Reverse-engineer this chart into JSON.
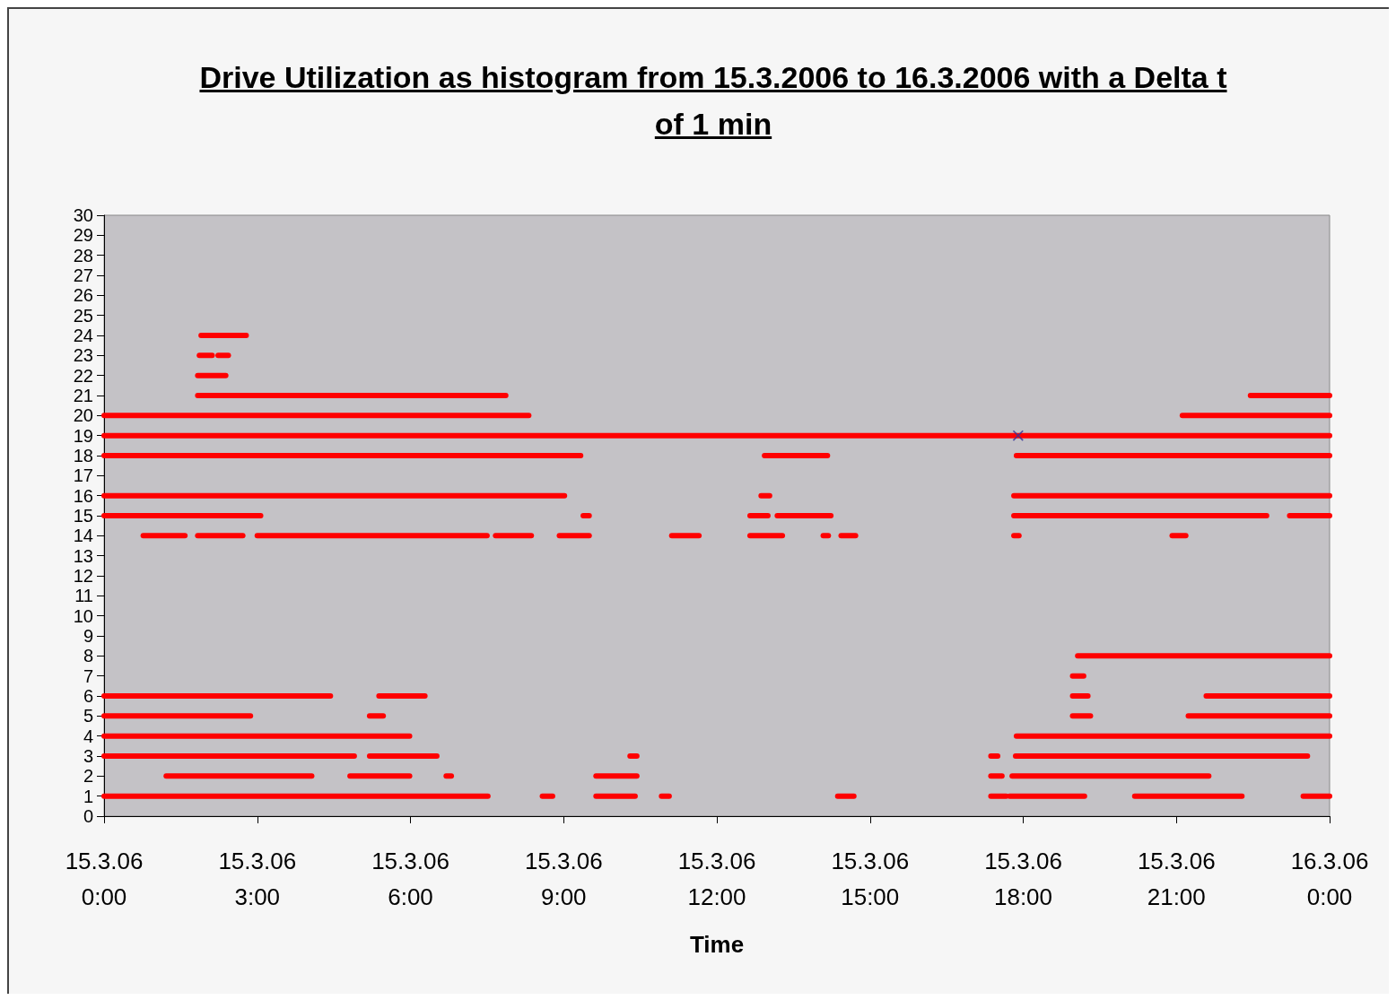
{
  "chart_data": {
    "type": "line",
    "title": "Drive Utilization as histogram from 15.3.2006 to 16.3.2006 with a Delta t of 1 min",
    "xlabel": "Time",
    "marker": "none",
    "line_style": "solid",
    "xlim": [
      "2006-03-15T00:00",
      "2006-03-16T00:00"
    ],
    "xticks": [
      {
        "value": "2006-03-15T00:00",
        "label": "15.3.06\n0:00"
      },
      {
        "value": "2006-03-15T03:00",
        "label": "15.3.06\n3:00"
      },
      {
        "value": "2006-03-15T06:00",
        "label": "15.3.06\n6:00"
      },
      {
        "value": "2006-03-15T09:00",
        "label": "15.3.06\n9:00"
      },
      {
        "value": "2006-03-15T12:00",
        "label": "15.3.06\n12:00"
      },
      {
        "value": "2006-03-15T15:00",
        "label": "15.3.06\n15:00"
      },
      {
        "value": "2006-03-15T18:00",
        "label": "15.3.06\n18:00"
      },
      {
        "value": "2006-03-15T21:00",
        "label": "15.3.06\n21:00"
      },
      {
        "value": "2006-03-16T00:00",
        "label": "16.3.06\n0:00"
      }
    ],
    "ylim": [
      0,
      30
    ],
    "yticks": [
      0,
      1,
      2,
      3,
      4,
      5,
      6,
      7,
      8,
      9,
      10,
      11,
      12,
      13,
      14,
      15,
      16,
      17,
      18,
      19,
      20,
      21,
      22,
      23,
      24,
      25,
      26,
      27,
      28,
      29,
      30
    ],
    "series": [
      {
        "color": "#ff0000",
        "x": [
          "2006-03-15T01:54",
          "2006-03-15T02:47"
        ],
        "values": [
          24,
          24
        ]
      },
      {
        "color": "#ff0000",
        "x": [
          "2006-03-15T01:52",
          "2006-03-15T02:07"
        ],
        "values": [
          23,
          23
        ]
      },
      {
        "color": "#ff0000",
        "x": [
          "2006-03-15T02:14",
          "2006-03-15T02:26"
        ],
        "values": [
          23,
          23
        ]
      },
      {
        "color": "#ff0000",
        "x": [
          "2006-03-15T01:50",
          "2006-03-15T02:23"
        ],
        "values": [
          22,
          22
        ]
      },
      {
        "color": "#ff0000",
        "x": [
          "2006-03-15T01:50",
          "2006-03-15T07:52"
        ],
        "values": [
          21,
          21
        ]
      },
      {
        "color": "#ff0000",
        "x": [
          "2006-03-15T22:27",
          "2006-03-16T00:00"
        ],
        "values": [
          21,
          21
        ]
      },
      {
        "color": "#ff0000",
        "x": [
          "2006-03-15T00:00",
          "2006-03-15T08:19"
        ],
        "values": [
          20,
          20
        ]
      },
      {
        "color": "#ff0000",
        "x": [
          "2006-03-15T21:07",
          "2006-03-16T00:00"
        ],
        "values": [
          20,
          20
        ]
      },
      {
        "color": "#ff0000",
        "x": [
          "2006-03-15T00:00",
          "2006-03-16T00:00"
        ],
        "values": [
          19,
          19
        ]
      },
      {
        "color": "#ff0000",
        "x": [
          "2006-03-15T00:00",
          "2006-03-15T09:20"
        ],
        "values": [
          18,
          18
        ]
      },
      {
        "color": "#ff0000",
        "x": [
          "2006-03-15T12:56",
          "2006-03-15T14:10"
        ],
        "values": [
          18,
          18
        ]
      },
      {
        "color": "#ff0000",
        "x": [
          "2006-03-15T17:52",
          "2006-03-16T00:00"
        ],
        "values": [
          18,
          18
        ]
      },
      {
        "color": "#ff0000",
        "x": [
          "2006-03-15T00:00",
          "2006-03-15T09:01"
        ],
        "values": [
          16,
          16
        ]
      },
      {
        "color": "#ff0000",
        "x": [
          "2006-03-15T12:52",
          "2006-03-15T13:02"
        ],
        "values": [
          16,
          16
        ]
      },
      {
        "color": "#ff0000",
        "x": [
          "2006-03-15T17:49",
          "2006-03-16T00:00"
        ],
        "values": [
          16,
          16
        ]
      },
      {
        "color": "#ff0000",
        "x": [
          "2006-03-15T00:00",
          "2006-03-15T03:04"
        ],
        "values": [
          15,
          15
        ]
      },
      {
        "color": "#ff0000",
        "x": [
          "2006-03-15T09:23",
          "2006-03-15T09:30"
        ],
        "values": [
          15,
          15
        ]
      },
      {
        "color": "#ff0000",
        "x": [
          "2006-03-15T12:39",
          "2006-03-15T13:00"
        ],
        "values": [
          15,
          15
        ]
      },
      {
        "color": "#ff0000",
        "x": [
          "2006-03-15T13:11",
          "2006-03-15T14:14"
        ],
        "values": [
          15,
          15
        ]
      },
      {
        "color": "#ff0000",
        "x": [
          "2006-03-15T17:49",
          "2006-03-15T22:46"
        ],
        "values": [
          15,
          15
        ]
      },
      {
        "color": "#ff0000",
        "x": [
          "2006-03-15T23:13",
          "2006-03-16T00:00"
        ],
        "values": [
          15,
          15
        ]
      },
      {
        "color": "#ff0000",
        "x": [
          "2006-03-15T00:46",
          "2006-03-15T01:35"
        ],
        "values": [
          14,
          14
        ]
      },
      {
        "color": "#ff0000",
        "x": [
          "2006-03-15T01:50",
          "2006-03-15T02:43"
        ],
        "values": [
          14,
          14
        ]
      },
      {
        "color": "#ff0000",
        "x": [
          "2006-03-15T03:00",
          "2006-03-15T07:30"
        ],
        "values": [
          14,
          14
        ]
      },
      {
        "color": "#ff0000",
        "x": [
          "2006-03-15T07:40",
          "2006-03-15T08:22"
        ],
        "values": [
          14,
          14
        ]
      },
      {
        "color": "#ff0000",
        "x": [
          "2006-03-15T08:55",
          "2006-03-15T09:30"
        ],
        "values": [
          14,
          14
        ]
      },
      {
        "color": "#ff0000",
        "x": [
          "2006-03-15T11:07",
          "2006-03-15T11:39"
        ],
        "values": [
          14,
          14
        ]
      },
      {
        "color": "#ff0000",
        "x": [
          "2006-03-15T12:39",
          "2006-03-15T13:17"
        ],
        "values": [
          14,
          14
        ]
      },
      {
        "color": "#ff0000",
        "x": [
          "2006-03-15T14:05",
          "2006-03-15T14:11"
        ],
        "values": [
          14,
          14
        ]
      },
      {
        "color": "#ff0000",
        "x": [
          "2006-03-15T14:26",
          "2006-03-15T14:43"
        ],
        "values": [
          14,
          14
        ]
      },
      {
        "color": "#ff0000",
        "x": [
          "2006-03-15T17:49",
          "2006-03-15T17:55"
        ],
        "values": [
          14,
          14
        ]
      },
      {
        "color": "#ff0000",
        "x": [
          "2006-03-15T20:55",
          "2006-03-15T21:11"
        ],
        "values": [
          14,
          14
        ]
      },
      {
        "color": "#ff0000",
        "x": [
          "2006-03-15T19:04",
          "2006-03-16T00:00"
        ],
        "values": [
          8,
          8
        ]
      },
      {
        "color": "#ff0000",
        "x": [
          "2006-03-15T18:58",
          "2006-03-15T19:11"
        ],
        "values": [
          7,
          7
        ]
      },
      {
        "color": "#ff0000",
        "x": [
          "2006-03-15T00:00",
          "2006-03-15T04:26"
        ],
        "values": [
          6,
          6
        ]
      },
      {
        "color": "#ff0000",
        "x": [
          "2006-03-15T05:23",
          "2006-03-15T06:17"
        ],
        "values": [
          6,
          6
        ]
      },
      {
        "color": "#ff0000",
        "x": [
          "2006-03-15T18:58",
          "2006-03-15T19:16"
        ],
        "values": [
          6,
          6
        ]
      },
      {
        "color": "#ff0000",
        "x": [
          "2006-03-15T21:35",
          "2006-03-16T00:00"
        ],
        "values": [
          6,
          6
        ]
      },
      {
        "color": "#ff0000",
        "x": [
          "2006-03-15T00:00",
          "2006-03-15T02:52"
        ],
        "values": [
          5,
          5
        ]
      },
      {
        "color": "#ff0000",
        "x": [
          "2006-03-15T05:12",
          "2006-03-15T05:28"
        ],
        "values": [
          5,
          5
        ]
      },
      {
        "color": "#ff0000",
        "x": [
          "2006-03-15T18:58",
          "2006-03-15T19:19"
        ],
        "values": [
          5,
          5
        ]
      },
      {
        "color": "#ff0000",
        "x": [
          "2006-03-15T21:14",
          "2006-03-16T00:00"
        ],
        "values": [
          5,
          5
        ]
      },
      {
        "color": "#ff0000",
        "x": [
          "2006-03-15T00:00",
          "2006-03-15T05:59"
        ],
        "values": [
          4,
          4
        ]
      },
      {
        "color": "#ff0000",
        "x": [
          "2006-03-15T17:52",
          "2006-03-16T00:00"
        ],
        "values": [
          4,
          4
        ]
      },
      {
        "color": "#ff0000",
        "x": [
          "2006-03-15T00:00",
          "2006-03-15T04:54"
        ],
        "values": [
          3,
          3
        ]
      },
      {
        "color": "#ff0000",
        "x": [
          "2006-03-15T05:12",
          "2006-03-15T06:31"
        ],
        "values": [
          3,
          3
        ]
      },
      {
        "color": "#ff0000",
        "x": [
          "2006-03-15T10:18",
          "2006-03-15T10:26"
        ],
        "values": [
          3,
          3
        ]
      },
      {
        "color": "#ff0000",
        "x": [
          "2006-03-15T17:22",
          "2006-03-15T17:30"
        ],
        "values": [
          3,
          3
        ]
      },
      {
        "color": "#ff0000",
        "x": [
          "2006-03-15T17:51",
          "2006-03-15T23:34"
        ],
        "values": [
          3,
          3
        ]
      },
      {
        "color": "#ff0000",
        "x": [
          "2006-03-15T01:13",
          "2006-03-15T04:04"
        ],
        "values": [
          2,
          2
        ]
      },
      {
        "color": "#ff0000",
        "x": [
          "2006-03-15T04:49",
          "2006-03-15T05:59"
        ],
        "values": [
          2,
          2
        ]
      },
      {
        "color": "#ff0000",
        "x": [
          "2006-03-15T06:42",
          "2006-03-15T06:48"
        ],
        "values": [
          2,
          2
        ]
      },
      {
        "color": "#ff0000",
        "x": [
          "2006-03-15T09:38",
          "2006-03-15T10:26"
        ],
        "values": [
          2,
          2
        ]
      },
      {
        "color": "#ff0000",
        "x": [
          "2006-03-15T17:22",
          "2006-03-15T17:35"
        ],
        "values": [
          2,
          2
        ]
      },
      {
        "color": "#ff0000",
        "x": [
          "2006-03-15T17:47",
          "2006-03-15T21:38"
        ],
        "values": [
          2,
          2
        ]
      },
      {
        "color": "#ff0000",
        "x": [
          "2006-03-15T00:00",
          "2006-03-15T07:31"
        ],
        "values": [
          1,
          1
        ]
      },
      {
        "color": "#ff0000",
        "x": [
          "2006-03-15T08:35",
          "2006-03-15T08:47"
        ],
        "values": [
          1,
          1
        ]
      },
      {
        "color": "#ff0000",
        "x": [
          "2006-03-15T09:38",
          "2006-03-15T10:24"
        ],
        "values": [
          1,
          1
        ]
      },
      {
        "color": "#ff0000",
        "x": [
          "2006-03-15T10:55",
          "2006-03-15T11:04"
        ],
        "values": [
          1,
          1
        ]
      },
      {
        "color": "#ff0000",
        "x": [
          "2006-03-15T14:22",
          "2006-03-15T14:41"
        ],
        "values": [
          1,
          1
        ]
      },
      {
        "color": "#ff0000",
        "x": [
          "2006-03-15T17:22",
          "2006-03-15T17:40"
        ],
        "values": [
          1,
          1
        ]
      },
      {
        "color": "#ff0000",
        "x": [
          "2006-03-15T17:44",
          "2006-03-15T19:12"
        ],
        "values": [
          1,
          1
        ]
      },
      {
        "color": "#ff0000",
        "x": [
          "2006-03-15T20:11",
          "2006-03-15T22:17"
        ],
        "values": [
          1,
          1
        ]
      },
      {
        "color": "#ff0000",
        "x": [
          "2006-03-15T23:29",
          "2006-03-16T00:00"
        ],
        "values": [
          1,
          1
        ]
      },
      {
        "type": "scatter",
        "marker": "cross",
        "color": "#333399",
        "x": [
          "2006-03-15T17:54"
        ],
        "values": [
          19
        ]
      }
    ]
  }
}
